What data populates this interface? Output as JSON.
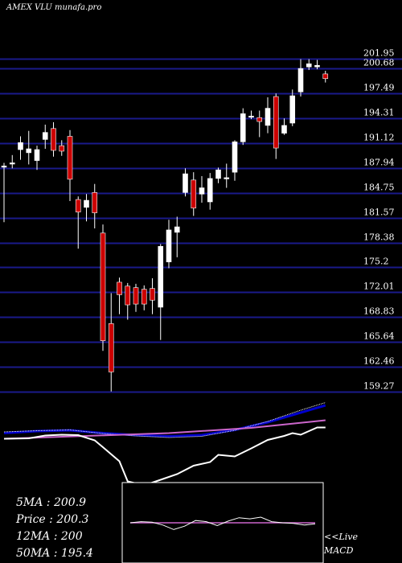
{
  "header": {
    "brand": "AMEX VLU munafa.pro"
  },
  "stats": {
    "ma5": "5MA : 200.9",
    "price": "Price : 200.3",
    "ma12": "12MA : 200",
    "ma50": "50MA : 195.4"
  },
  "macd_label": {
    "line1": "<<Live",
    "line2": "MACD"
  },
  "colors": {
    "background": "#000000",
    "grid": "#1a1a8a",
    "up_candle": "#ffffff",
    "down_candle": "#cc0000",
    "ma_fast": "#ffffff",
    "ma_slow": "#0000cc",
    "ma_long": "#cc66cc",
    "macd_line": "#ffffff",
    "signal_line": "#cc66cc"
  },
  "chart_data": {
    "type": "candlestick",
    "title": "AMEX VLU munafa.pro",
    "y_ticks": [
      "201.95",
      "200.68",
      "197.49",
      "194.31",
      "191.12",
      "187.94",
      "184.75",
      "181.57",
      "178.38",
      "175.2",
      "172.01",
      "168.83",
      "165.64",
      "162.46",
      "159.27"
    ],
    "ylim": [
      159.27,
      201.95
    ],
    "candles": [
      {
        "o": 188.2,
        "h": 188.6,
        "l": 181.0,
        "c": 188.2
      },
      {
        "o": 188.5,
        "h": 189.6,
        "l": 187.9,
        "c": 188.6
      },
      {
        "o": 190.3,
        "h": 192.0,
        "l": 189.0,
        "c": 191.2
      },
      {
        "o": 189.9,
        "h": 192.7,
        "l": 188.4,
        "c": 190.4
      },
      {
        "o": 188.9,
        "h": 190.8,
        "l": 187.7,
        "c": 190.3
      },
      {
        "o": 191.6,
        "h": 193.5,
        "l": 190.4,
        "c": 192.5
      },
      {
        "o": 193.0,
        "h": 193.8,
        "l": 189.4,
        "c": 190.2
      },
      {
        "o": 190.8,
        "h": 191.5,
        "l": 189.5,
        "c": 190.1
      },
      {
        "o": 192.0,
        "h": 192.8,
        "l": 183.7,
        "c": 186.5
      },
      {
        "o": 183.9,
        "h": 184.3,
        "l": 177.6,
        "c": 182.3
      },
      {
        "o": 182.9,
        "h": 184.6,
        "l": 181.1,
        "c": 183.8
      },
      {
        "o": 184.8,
        "h": 185.9,
        "l": 180.2,
        "c": 182.2
      },
      {
        "o": 179.6,
        "h": 180.7,
        "l": 164.5,
        "c": 165.8
      },
      {
        "o": 168.0,
        "h": 171.9,
        "l": 159.3,
        "c": 161.8
      },
      {
        "o": 173.3,
        "h": 173.9,
        "l": 169.2,
        "c": 171.7
      },
      {
        "o": 172.8,
        "h": 173.2,
        "l": 168.5,
        "c": 170.4
      },
      {
        "o": 172.6,
        "h": 173.1,
        "l": 169.5,
        "c": 170.5
      },
      {
        "o": 172.4,
        "h": 172.9,
        "l": 169.7,
        "c": 170.5
      },
      {
        "o": 172.5,
        "h": 173.8,
        "l": 169.2,
        "c": 171.0
      },
      {
        "o": 170.1,
        "h": 178.2,
        "l": 165.9,
        "c": 177.9
      },
      {
        "o": 175.9,
        "h": 181.3,
        "l": 175.1,
        "c": 180.0
      },
      {
        "o": 179.7,
        "h": 181.7,
        "l": 176.5,
        "c": 180.4
      },
      {
        "o": 184.8,
        "h": 187.9,
        "l": 184.3,
        "c": 187.2
      },
      {
        "o": 186.4,
        "h": 187.4,
        "l": 181.8,
        "c": 182.8
      },
      {
        "o": 184.6,
        "h": 186.9,
        "l": 183.5,
        "c": 185.4
      },
      {
        "o": 183.6,
        "h": 187.3,
        "l": 182.6,
        "c": 186.6
      },
      {
        "o": 186.6,
        "h": 188.0,
        "l": 186.0,
        "c": 187.7
      },
      {
        "o": 186.7,
        "h": 188.5,
        "l": 185.4,
        "c": 186.7
      },
      {
        "o": 187.4,
        "h": 191.5,
        "l": 186.3,
        "c": 191.3
      },
      {
        "o": 191.3,
        "h": 195.6,
        "l": 190.9,
        "c": 194.9
      },
      {
        "o": 194.5,
        "h": 195.3,
        "l": 194.2,
        "c": 194.6
      },
      {
        "o": 194.4,
        "h": 195.3,
        "l": 191.9,
        "c": 193.9
      },
      {
        "o": 193.4,
        "h": 197.0,
        "l": 192.4,
        "c": 195.6
      },
      {
        "o": 197.1,
        "h": 197.5,
        "l": 189.1,
        "c": 190.5
      },
      {
        "o": 192.4,
        "h": 194.3,
        "l": 192.2,
        "c": 193.4
      },
      {
        "o": 193.7,
        "h": 198.0,
        "l": 193.3,
        "c": 197.2
      },
      {
        "o": 197.7,
        "h": 201.9,
        "l": 197.1,
        "c": 200.7
      },
      {
        "o": 200.9,
        "h": 201.9,
        "l": 200.5,
        "c": 201.3
      },
      {
        "o": 200.9,
        "h": 201.8,
        "l": 200.6,
        "c": 201.1
      },
      {
        "o": 200.0,
        "h": 200.4,
        "l": 198.9,
        "c": 199.4
      }
    ],
    "ma_lines": {
      "ma_fast": [
        {
          "x": 0,
          "y": 188.6
        },
        {
          "x": 4,
          "y": 188.9
        },
        {
          "x": 8,
          "y": 189.1
        },
        {
          "x": 12,
          "y": 188.2
        },
        {
          "x": 16,
          "y": 187.6
        },
        {
          "x": 20,
          "y": 187.2
        },
        {
          "x": 24,
          "y": 187.5
        },
        {
          "x": 28,
          "y": 189.0
        },
        {
          "x": 32,
          "y": 191.2
        },
        {
          "x": 36,
          "y": 194.0
        },
        {
          "x": 39,
          "y": 195.9
        }
      ],
      "ma_slow": [
        {
          "x": 0,
          "y": 188.3
        },
        {
          "x": 4,
          "y": 188.8
        },
        {
          "x": 8,
          "y": 189.0
        },
        {
          "x": 12,
          "y": 188.3
        },
        {
          "x": 16,
          "y": 187.8
        },
        {
          "x": 20,
          "y": 187.5
        },
        {
          "x": 24,
          "y": 187.8
        },
        {
          "x": 28,
          "y": 189.1
        },
        {
          "x": 32,
          "y": 191.0
        },
        {
          "x": 36,
          "y": 193.4
        },
        {
          "x": 39,
          "y": 195.2
        }
      ],
      "ma_long": [
        {
          "x": 0,
          "y": 186.9
        },
        {
          "x": 10,
          "y": 187.6
        },
        {
          "x": 20,
          "y": 188.3
        },
        {
          "x": 30,
          "y": 189.6
        },
        {
          "x": 39,
          "y": 191.5
        }
      ],
      "price_line": [
        {
          "x": 0,
          "y": 186.9
        },
        {
          "x": 3,
          "y": 187.0
        },
        {
          "x": 5,
          "y": 187.7
        },
        {
          "x": 7,
          "y": 187.9
        },
        {
          "x": 9,
          "y": 187.8
        },
        {
          "x": 11,
          "y": 186.5
        },
        {
          "x": 12,
          "y": 184.8
        },
        {
          "x": 14,
          "y": 181.3
        },
        {
          "x": 15,
          "y": 176.3
        },
        {
          "x": 17,
          "y": 175.3
        },
        {
          "x": 19,
          "y": 176.7
        },
        {
          "x": 21,
          "y": 178.1
        },
        {
          "x": 23,
          "y": 180.2
        },
        {
          "x": 25,
          "y": 181.1
        },
        {
          "x": 26,
          "y": 182.9
        },
        {
          "x": 28,
          "y": 182.5
        },
        {
          "x": 30,
          "y": 184.5
        },
        {
          "x": 32,
          "y": 186.6
        },
        {
          "x": 34,
          "y": 187.6
        },
        {
          "x": 35,
          "y": 188.3
        },
        {
          "x": 36,
          "y": 187.9
        },
        {
          "x": 38,
          "y": 189.7
        },
        {
          "x": 39,
          "y": 189.7
        }
      ]
    },
    "macd": {
      "macd": [
        0.0,
        0.1,
        0.05,
        -0.2,
        -0.6,
        -0.3,
        0.2,
        0.1,
        -0.25,
        0.15,
        0.45,
        0.35,
        0.5,
        0.1,
        0.0,
        -0.05,
        -0.2,
        -0.1
      ],
      "signal": [
        0.0,
        0.0,
        0.0,
        0.0,
        0.0,
        0.0,
        0.0,
        0.0,
        0.0,
        0.0,
        0.0,
        0.0,
        0.0,
        0.0,
        0.0,
        0.0,
        0.0,
        0.0
      ]
    }
  }
}
